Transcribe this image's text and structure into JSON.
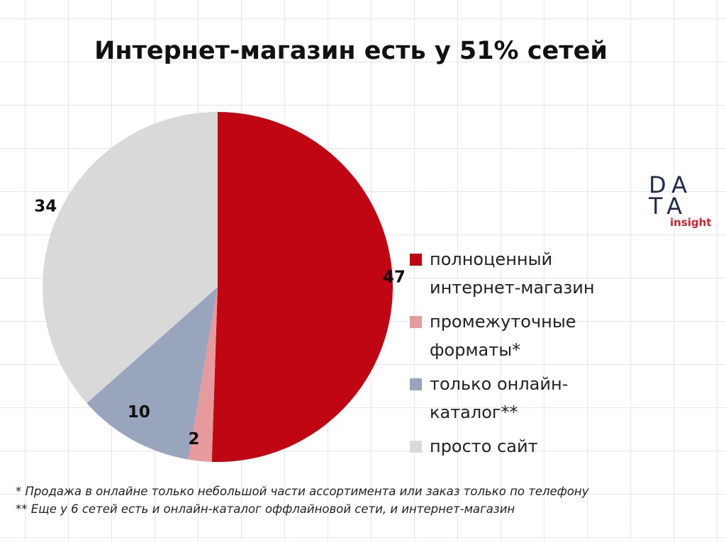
{
  "chart_data": {
    "type": "pie",
    "title": "Интернет-магазин есть у 51% сетей",
    "categories": [
      "полноценный интернет-магазин",
      "промежуточные форматы*",
      "только онлайн-каталог**",
      "просто сайт"
    ],
    "values": [
      47,
      2,
      10,
      34
    ],
    "data_labels": [
      "47",
      "2",
      "10",
      "34"
    ],
    "colors": [
      "#c00613",
      "#e69a9c",
      "#99a4bd",
      "#d9d9d9"
    ],
    "legend_position": "right"
  },
  "logo": {
    "line1": "DA",
    "line2": "TA",
    "sub": "insight"
  },
  "footnotes": {
    "note1": "* Продажа в онлайне только небольшой части ассортимента или заказ только по телефону",
    "note2": "** Еще у 6 сетей есть и онлайн-каталог оффлайновой сети, и интернет-магазин"
  }
}
